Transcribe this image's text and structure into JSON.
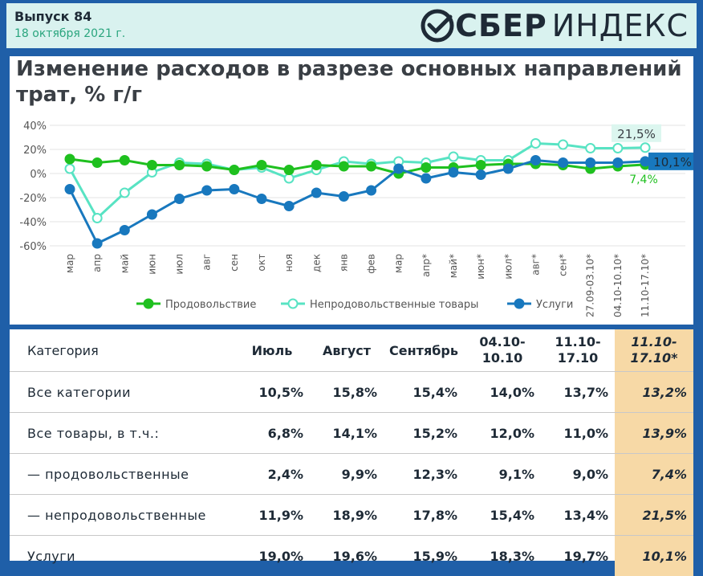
{
  "header": {
    "issue": "Выпуск 84",
    "date": "18 октября 2021 г.",
    "logo_bold": "СБЕР",
    "logo_light": "ИНДЕКС"
  },
  "colors": {
    "food": "#1fc01f",
    "nonfood": "#58e3c3",
    "services": "#1878be",
    "highlight": "#f7d9a6"
  },
  "chart_data": {
    "type": "line",
    "title": "Изменение расходов в разрезе основных направлений трат, % г/г",
    "categories": [
      "мар",
      "апр",
      "май",
      "июн",
      "июл",
      "авг",
      "сен",
      "окт",
      "ноя",
      "дек",
      "янв",
      "фев",
      "мар",
      "апр*",
      "май*",
      "июн*",
      "июл*",
      "авг*",
      "сен*",
      "27.09-03.10*",
      "04.10-10.10*",
      "11.10-17.10*"
    ],
    "ylim": [
      -60,
      40
    ],
    "yticks": [
      "40%",
      "20%",
      "0%",
      "-20%",
      "-40%",
      "-60%"
    ],
    "grid": true,
    "legend_position": "bottom",
    "series": [
      {
        "name": "Продовольствие",
        "values": [
          12,
          9,
          11,
          7,
          7,
          6,
          3,
          7,
          3,
          7,
          6,
          6,
          0,
          5,
          5,
          7,
          8,
          8,
          7,
          4,
          6,
          7.4
        ]
      },
      {
        "name": "Непродовольственные товары",
        "values": [
          4,
          -37,
          -16,
          1,
          9,
          8,
          3,
          5,
          -4,
          3,
          10,
          8,
          10,
          9,
          14,
          11,
          11,
          25,
          24,
          21,
          21,
          21.5
        ]
      },
      {
        "name": "Услуги",
        "values": [
          -13,
          -58,
          -47,
          -34,
          -21,
          -14,
          -13,
          -21,
          -27,
          -16,
          -19,
          -14,
          4,
          -4,
          1,
          -1,
          4,
          11,
          9,
          9,
          9,
          10.1
        ]
      }
    ],
    "end_labels": {
      "food": "7,4%",
      "nonfood": "21,5%",
      "services": "10,1%"
    }
  },
  "table": {
    "headers": [
      "Категория",
      "Июль",
      "Август",
      "Сентябрь",
      "04.10-\n10.10",
      "11.10-\n17.10",
      "11.10-\n17.10*"
    ],
    "rows": [
      {
        "label": "Все категории",
        "values": [
          "10,5%",
          "15,8%",
          "15,4%",
          "14,0%",
          "13,7%",
          "13,2%"
        ]
      },
      {
        "label": "Все товары, в т.ч.:",
        "values": [
          "6,8%",
          "14,1%",
          "15,2%",
          "12,0%",
          "11,0%",
          "13,9%"
        ]
      },
      {
        "label": "— продовольственные",
        "values": [
          "2,4%",
          "9,9%",
          "12,3%",
          "9,1%",
          "9,0%",
          "7,4%"
        ]
      },
      {
        "label": "— непродовольственные",
        "values": [
          "11,9%",
          "18,9%",
          "17,8%",
          "15,4%",
          "13,4%",
          "21,5%"
        ]
      },
      {
        "label": "Услуги",
        "values": [
          "19,0%",
          "19,6%",
          "15,9%",
          "18,3%",
          "19,7%",
          "10,1%"
        ]
      }
    ]
  }
}
